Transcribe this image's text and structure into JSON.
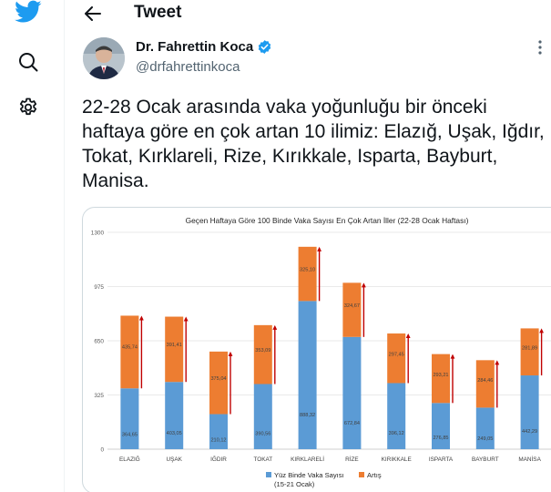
{
  "nav": {
    "logo_icon": "twitter-bird-icon",
    "items": [
      {
        "icon": "search-icon"
      },
      {
        "icon": "settings-gear-icon"
      }
    ]
  },
  "header": {
    "back_icon": "arrow-left-icon",
    "title": "Tweet"
  },
  "author": {
    "name": "Dr. Fahrettin Koca",
    "handle": "@drfahrettinkoca",
    "verified_icon": "verified-badge-icon",
    "more_icon": "more-icon"
  },
  "tweet": {
    "text": "22-28 Ocak arasında vaka yoğunluğu bir önceki haftaya göre en çok artan 10 ilimiz: Elazığ, Uşak, Iğdır, Tokat, Kırklareli, Rize, Kırıkkale, Isparta, Bayburt, Manisa."
  },
  "colors": {
    "brand": "#1d9bf0",
    "series_base": "#5b9bd5",
    "series_increase": "#ed7d31",
    "arrow": "#c00000"
  },
  "chart_data": {
    "type": "bar",
    "stacked": true,
    "title": "Geçen Haftaya Göre 100 Binde Vaka Sayısı En Çok Artan İller (22-28 Ocak Haftası)",
    "categories": [
      "ELAZIĞ",
      "UŞAK",
      "IĞDIR",
      "TOKAT",
      "KIRKLARELİ",
      "RİZE",
      "KIRIKKALE",
      "ISPARTA",
      "BAYBURT",
      "MANİSA"
    ],
    "series": [
      {
        "name": "Yüz Binde Vaka Sayısı\n(15-21 Ocak)",
        "values": [
          364.65,
          403.05,
          210.12,
          390.56,
          888.32,
          672.84,
          396.12,
          276.85,
          249.05,
          442.29
        ],
        "labels": [
          "364,65",
          "403,05",
          "210,12",
          "390,56",
          "888,32",
          "672,84",
          "396,12",
          "276,85",
          "249,05",
          "442,29"
        ]
      },
      {
        "name": "Artış",
        "values": [
          435.74,
          391.41,
          375.04,
          353.09,
          325.1,
          324.67,
          297.45,
          293.21,
          284.46,
          281.89
        ],
        "labels": [
          "435,74",
          "391,41",
          "375,04",
          "353,09",
          "325,10",
          "324,67",
          "297,45",
          "293,21",
          "284,46",
          "281,89"
        ]
      }
    ],
    "legend": [
      {
        "label_line1": "Yüz Binde Vaka Sayısı",
        "label_line2": "(15-21 Ocak)"
      },
      {
        "label_line1": "Artış",
        "label_line2": ""
      }
    ],
    "legend_position": "bottom",
    "ylim": [
      0,
      1300
    ],
    "yticks": [
      0,
      325,
      650,
      975,
      1300
    ],
    "grid": true,
    "arrows": true
  }
}
